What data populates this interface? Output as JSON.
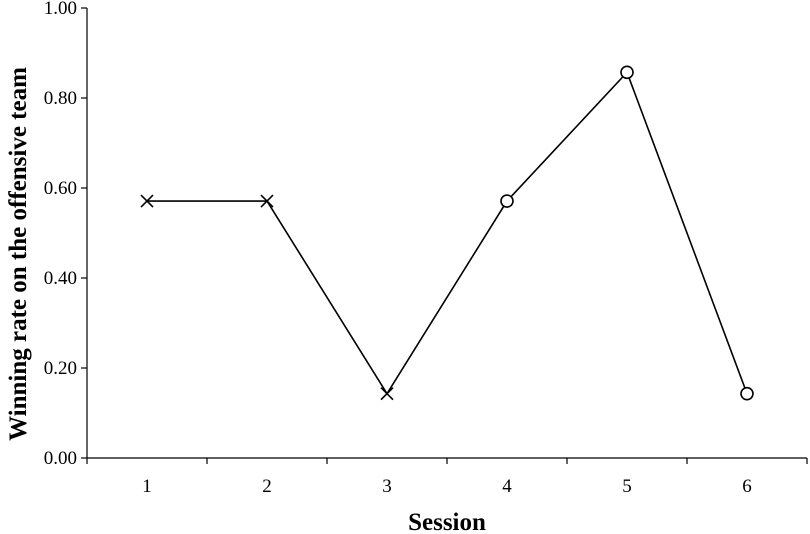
{
  "chart_data": {
    "type": "line",
    "xlabel": "Session",
    "ylabel": "Winning rate on the offensive team",
    "ylim": [
      0,
      1
    ],
    "y_ticks": [
      "0.00",
      "0.20",
      "0.40",
      "0.60",
      "0.80",
      "1.00"
    ],
    "x_ticks": [
      "1",
      "2",
      "3",
      "4",
      "5",
      "6"
    ],
    "x": [
      1,
      2,
      3,
      4,
      5,
      6
    ],
    "values": [
      0.571,
      0.571,
      0.143,
      0.571,
      0.857,
      0.143
    ],
    "markers": [
      "x",
      "x",
      "x",
      "circle",
      "circle",
      "circle"
    ],
    "grid": false,
    "legend": "none",
    "colors": {
      "line": "#000000",
      "marker": "#000000"
    }
  }
}
